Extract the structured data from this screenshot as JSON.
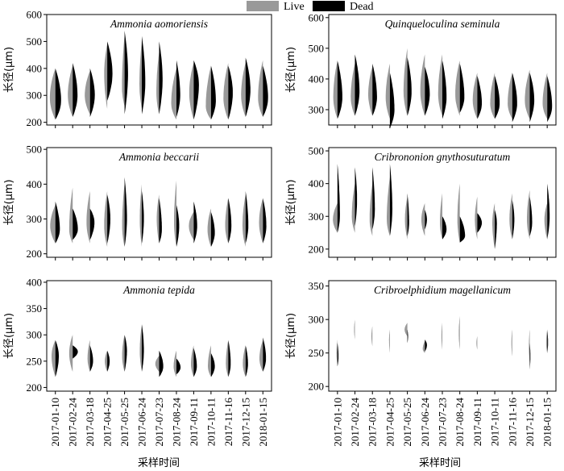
{
  "legend": {
    "live_label": "Live",
    "dead_label": "Dead",
    "live_color": "#999999",
    "dead_color": "#000000"
  },
  "xlabel": "采样时间",
  "ylabel": "长径(μm)",
  "dates": [
    "2017-01-10",
    "2017-02-24",
    "2017-03-18",
    "2017-04-25",
    "2017-05-25",
    "2017-06-24",
    "2017-07-23",
    "2017-08-24",
    "2017-09-11",
    "2017-10-11",
    "2017-11-16",
    "2017-12-15",
    "2018-01-15"
  ],
  "chart_data": [
    {
      "type": "split-violin",
      "title": "Ammonia aomoriensis",
      "ylim": [
        190,
        600
      ],
      "yticks": [
        200,
        300,
        400,
        500,
        600
      ],
      "live": [
        {
          "lo": 210,
          "hi": 400,
          "mode": 290,
          "w": 0.32
        },
        {
          "lo": 220,
          "hi": 410,
          "mode": 300,
          "w": 0.28
        },
        {
          "lo": 230,
          "hi": 390,
          "mode": 300,
          "w": 0.3
        },
        {
          "lo": 250,
          "hi": 490,
          "mode": 380,
          "w": 0.18
        },
        {
          "lo": 260,
          "hi": 520,
          "mode": 330,
          "w": 0.15
        },
        {
          "lo": 250,
          "hi": 500,
          "mode": 340,
          "w": 0.14
        },
        {
          "lo": 230,
          "hi": 460,
          "mode": 310,
          "w": 0.16
        },
        {
          "lo": 210,
          "hi": 400,
          "mode": 270,
          "w": 0.3
        },
        {
          "lo": 210,
          "hi": 420,
          "mode": 310,
          "w": 0.26
        },
        {
          "lo": 210,
          "hi": 410,
          "mode": 260,
          "w": 0.3
        },
        {
          "lo": 210,
          "hi": 420,
          "mode": 290,
          "w": 0.28
        },
        {
          "lo": 220,
          "hi": 420,
          "mode": 300,
          "w": 0.26
        },
        {
          "lo": 220,
          "hi": 430,
          "mode": 290,
          "w": 0.28
        }
      ],
      "dead": [
        {
          "lo": 210,
          "hi": 400,
          "mode": 280,
          "w": 0.33
        },
        {
          "lo": 220,
          "hi": 420,
          "mode": 300,
          "w": 0.28
        },
        {
          "lo": 220,
          "hi": 400,
          "mode": 300,
          "w": 0.28
        },
        {
          "lo": 280,
          "hi": 500,
          "mode": 380,
          "w": 0.3
        },
        {
          "lo": 230,
          "hi": 540,
          "mode": 380,
          "w": 0.2
        },
        {
          "lo": 230,
          "hi": 520,
          "mode": 350,
          "w": 0.2
        },
        {
          "lo": 230,
          "hi": 500,
          "mode": 360,
          "w": 0.2
        },
        {
          "lo": 220,
          "hi": 430,
          "mode": 300,
          "w": 0.22
        },
        {
          "lo": 210,
          "hi": 430,
          "mode": 340,
          "w": 0.3
        },
        {
          "lo": 210,
          "hi": 410,
          "mode": 280,
          "w": 0.28
        },
        {
          "lo": 210,
          "hi": 410,
          "mode": 310,
          "w": 0.26
        },
        {
          "lo": 220,
          "hi": 440,
          "mode": 320,
          "w": 0.28
        },
        {
          "lo": 220,
          "hi": 410,
          "mode": 290,
          "w": 0.3
        }
      ]
    },
    {
      "type": "split-violin",
      "title": "Quinqueloculina seminula",
      "ylim": [
        250,
        610
      ],
      "yticks": [
        300,
        400,
        500,
        600
      ],
      "live": [
        {
          "lo": 270,
          "hi": 460,
          "mode": 340,
          "w": 0.24
        },
        {
          "lo": 280,
          "hi": 450,
          "mode": 340,
          "w": 0.24
        },
        {
          "lo": 280,
          "hi": 440,
          "mode": 350,
          "w": 0.24
        },
        {
          "lo": 270,
          "hi": 450,
          "mode": 340,
          "w": 0.24
        },
        {
          "lo": 280,
          "hi": 500,
          "mode": 360,
          "w": 0.22
        },
        {
          "lo": 280,
          "hi": 480,
          "mode": 360,
          "w": 0.26
        },
        {
          "lo": 280,
          "hi": 480,
          "mode": 350,
          "w": 0.24
        },
        {
          "lo": 280,
          "hi": 460,
          "mode": 350,
          "w": 0.26
        },
        {
          "lo": 270,
          "hi": 420,
          "mode": 330,
          "w": 0.26
        },
        {
          "lo": 270,
          "hi": 420,
          "mode": 320,
          "w": 0.26
        },
        {
          "lo": 270,
          "hi": 420,
          "mode": 320,
          "w": 0.26
        },
        {
          "lo": 270,
          "hi": 430,
          "mode": 330,
          "w": 0.28
        },
        {
          "lo": 270,
          "hi": 420,
          "mode": 320,
          "w": 0.26
        }
      ],
      "dead": [
        {
          "lo": 270,
          "hi": 460,
          "mode": 340,
          "w": 0.28
        },
        {
          "lo": 280,
          "hi": 480,
          "mode": 360,
          "w": 0.26
        },
        {
          "lo": 280,
          "hi": 450,
          "mode": 340,
          "w": 0.26
        },
        {
          "lo": 240,
          "hi": 420,
          "mode": 300,
          "w": 0.26
        },
        {
          "lo": 280,
          "hi": 470,
          "mode": 360,
          "w": 0.24
        },
        {
          "lo": 280,
          "hi": 440,
          "mode": 350,
          "w": 0.28
        },
        {
          "lo": 270,
          "hi": 460,
          "mode": 340,
          "w": 0.24
        },
        {
          "lo": 290,
          "hi": 450,
          "mode": 340,
          "w": 0.26
        },
        {
          "lo": 270,
          "hi": 410,
          "mode": 320,
          "w": 0.26
        },
        {
          "lo": 270,
          "hi": 410,
          "mode": 320,
          "w": 0.28
        },
        {
          "lo": 260,
          "hi": 420,
          "mode": 320,
          "w": 0.28
        },
        {
          "lo": 260,
          "hi": 420,
          "mode": 330,
          "w": 0.26
        },
        {
          "lo": 260,
          "hi": 410,
          "mode": 310,
          "w": 0.28
        }
      ]
    },
    {
      "type": "split-violin",
      "title": "Ammonia beccarii",
      "ylim": [
        190,
        505
      ],
      "yticks": [
        200,
        300,
        400,
        500
      ],
      "live": [
        {
          "lo": 230,
          "hi": 340,
          "mode": 280,
          "w": 0.3
        },
        {
          "lo": 230,
          "hi": 390,
          "mode": 270,
          "w": 0.2
        },
        {
          "lo": 230,
          "hi": 380,
          "mode": 290,
          "w": 0.2
        },
        {
          "lo": 220,
          "hi": 380,
          "mode": 280,
          "w": 0.18
        },
        {
          "lo": 220,
          "hi": 400,
          "mode": 280,
          "w": 0.14
        },
        {
          "lo": 220,
          "hi": 400,
          "mode": 300,
          "w": 0.12
        },
        {
          "lo": 230,
          "hi": 370,
          "mode": 300,
          "w": 0.14
        },
        {
          "lo": 220,
          "hi": 410,
          "mode": 290,
          "w": 0.14
        },
        {
          "lo": 240,
          "hi": 320,
          "mode": 280,
          "w": 0.28
        },
        {
          "lo": 220,
          "hi": 330,
          "mode": 270,
          "w": 0.2
        },
        {
          "lo": 230,
          "hi": 360,
          "mode": 280,
          "w": 0.18
        },
        {
          "lo": 220,
          "hi": 370,
          "mode": 280,
          "w": 0.18
        },
        {
          "lo": 230,
          "hi": 360,
          "mode": 290,
          "w": 0.22
        }
      ],
      "dead": [
        {
          "lo": 230,
          "hi": 350,
          "mode": 270,
          "w": 0.26
        },
        {
          "lo": 240,
          "hi": 330,
          "mode": 270,
          "w": 0.3
        },
        {
          "lo": 240,
          "hi": 330,
          "mode": 290,
          "w": 0.26
        },
        {
          "lo": 230,
          "hi": 370,
          "mode": 300,
          "w": 0.18
        },
        {
          "lo": 220,
          "hi": 420,
          "mode": 300,
          "w": 0.14
        },
        {
          "lo": 230,
          "hi": 380,
          "mode": 300,
          "w": 0.12
        },
        {
          "lo": 230,
          "hi": 360,
          "mode": 270,
          "w": 0.16
        },
        {
          "lo": 220,
          "hi": 340,
          "mode": 280,
          "w": 0.16
        },
        {
          "lo": 230,
          "hi": 350,
          "mode": 280,
          "w": 0.2
        },
        {
          "lo": 220,
          "hi": 320,
          "mode": 260,
          "w": 0.22
        },
        {
          "lo": 230,
          "hi": 360,
          "mode": 280,
          "w": 0.18
        },
        {
          "lo": 230,
          "hi": 380,
          "mode": 280,
          "w": 0.16
        },
        {
          "lo": 230,
          "hi": 360,
          "mode": 280,
          "w": 0.2
        }
      ]
    },
    {
      "type": "split-violin",
      "title": "Cribrononion gnythosuturatum",
      "ylim": [
        175,
        510
      ],
      "yticks": [
        200,
        300,
        400,
        500
      ],
      "live": [
        {
          "lo": 250,
          "hi": 340,
          "mode": 290,
          "w": 0.26
        },
        {
          "lo": 250,
          "hi": 400,
          "mode": 300,
          "w": 0.18
        },
        {
          "lo": 240,
          "hi": 400,
          "mode": 290,
          "w": 0.16
        },
        {
          "lo": 240,
          "hi": 420,
          "mode": 290,
          "w": 0.18
        },
        {
          "lo": 230,
          "hi": 360,
          "mode": 290,
          "w": 0.14
        },
        {
          "lo": 240,
          "hi": 340,
          "mode": 290,
          "w": 0.2
        },
        {
          "lo": 230,
          "hi": 370,
          "mode": 280,
          "w": 0.14
        },
        {
          "lo": 220,
          "hi": 400,
          "mode": 290,
          "w": 0.14
        },
        {
          "lo": 230,
          "hi": 360,
          "mode": 290,
          "w": 0.14
        },
        {
          "lo": 200,
          "hi": 340,
          "mode": 280,
          "w": 0.14
        },
        {
          "lo": 230,
          "hi": 370,
          "mode": 290,
          "w": 0.16
        },
        {
          "lo": 230,
          "hi": 380,
          "mode": 290,
          "w": 0.16
        },
        {
          "lo": 230,
          "hi": 340,
          "mode": 290,
          "w": 0.16
        }
      ],
      "dead": [
        {
          "lo": 250,
          "hi": 460,
          "mode": 300,
          "w": 0.14
        },
        {
          "lo": 270,
          "hi": 450,
          "mode": 350,
          "w": 0.12
        },
        {
          "lo": 260,
          "hi": 450,
          "mode": 320,
          "w": 0.14
        },
        {
          "lo": 240,
          "hi": 460,
          "mode": 320,
          "w": 0.14
        },
        {
          "lo": 240,
          "hi": 370,
          "mode": 280,
          "w": 0.1
        },
        {
          "lo": 260,
          "hi": 320,
          "mode": 290,
          "w": 0.12
        },
        {
          "lo": 230,
          "hi": 300,
          "mode": 260,
          "w": 0.24
        },
        {
          "lo": 220,
          "hi": 300,
          "mode": 240,
          "w": 0.3
        },
        {
          "lo": 250,
          "hi": 310,
          "mode": 280,
          "w": 0.26
        },
        {
          "lo": 200,
          "hi": 320,
          "mode": 280,
          "w": 0.12
        },
        {
          "lo": 230,
          "hi": 350,
          "mode": 290,
          "w": 0.12
        },
        {
          "lo": 240,
          "hi": 360,
          "mode": 280,
          "w": 0.14
        },
        {
          "lo": 230,
          "hi": 400,
          "mode": 300,
          "w": 0.14
        }
      ]
    },
    {
      "type": "split-violin",
      "title": "Ammonia tepida",
      "ylim": [
        193,
        403
      ],
      "yticks": [
        200,
        250,
        300,
        350,
        400
      ],
      "live": [
        {
          "lo": 220,
          "hi": 290,
          "mode": 260,
          "w": 0.22
        },
        {
          "lo": 230,
          "hi": 300,
          "mode": 265,
          "w": 0.2
        },
        {
          "lo": 230,
          "hi": 290,
          "mode": 255,
          "w": 0.14
        },
        {
          "lo": 230,
          "hi": 270,
          "mode": 250,
          "w": 0.14
        },
        {
          "lo": 230,
          "hi": 300,
          "mode": 260,
          "w": 0.14
        },
        {
          "lo": 230,
          "hi": 320,
          "mode": 270,
          "w": 0.12
        },
        {
          "lo": 230,
          "hi": 260,
          "mode": 245,
          "w": 0.22
        },
        {
          "lo": 220,
          "hi": 270,
          "mode": 240,
          "w": 0.16
        },
        {
          "lo": 220,
          "hi": 280,
          "mode": 245,
          "w": 0.16
        },
        {
          "lo": 220,
          "hi": 280,
          "mode": 240,
          "w": 0.18
        },
        {
          "lo": 220,
          "hi": 290,
          "mode": 245,
          "w": 0.14
        },
        {
          "lo": 220,
          "hi": 280,
          "mode": 245,
          "w": 0.16
        },
        {
          "lo": 230,
          "hi": 290,
          "mode": 255,
          "w": 0.2
        }
      ],
      "dead": [
        {
          "lo": 220,
          "hi": 290,
          "mode": 260,
          "w": 0.2
        },
        {
          "lo": 255,
          "hi": 280,
          "mode": 268,
          "w": 0.3
        },
        {
          "lo": 230,
          "hi": 280,
          "mode": 250,
          "w": 0.18
        },
        {
          "lo": 230,
          "hi": 270,
          "mode": 250,
          "w": 0.14
        },
        {
          "lo": 230,
          "hi": 300,
          "mode": 270,
          "w": 0.14
        },
        {
          "lo": 230,
          "hi": 320,
          "mode": 270,
          "w": 0.12
        },
        {
          "lo": 220,
          "hi": 270,
          "mode": 240,
          "w": 0.24
        },
        {
          "lo": 225,
          "hi": 255,
          "mode": 238,
          "w": 0.24
        },
        {
          "lo": 220,
          "hi": 275,
          "mode": 240,
          "w": 0.18
        },
        {
          "lo": 220,
          "hi": 265,
          "mode": 240,
          "w": 0.22
        },
        {
          "lo": 220,
          "hi": 290,
          "mode": 245,
          "w": 0.14
        },
        {
          "lo": 220,
          "hi": 280,
          "mode": 245,
          "w": 0.14
        },
        {
          "lo": 230,
          "hi": 295,
          "mode": 255,
          "w": 0.18
        }
      ]
    },
    {
      "type": "split-violin",
      "title": "Cribroelphidium magellanicum",
      "ylim": [
        193,
        358
      ],
      "yticks": [
        200,
        250,
        300,
        350
      ],
      "live": [
        {
          "lo": 230,
          "hi": 270,
          "mode": 250,
          "w": 0.06
        },
        {
          "lo": 270,
          "hi": 300,
          "mode": 285,
          "w": 0.05
        },
        {
          "lo": 260,
          "hi": 290,
          "mode": 275,
          "w": 0.06
        },
        {
          "lo": 250,
          "hi": 285,
          "mode": 270,
          "w": 0.05
        },
        {
          "lo": 275,
          "hi": 295,
          "mode": 285,
          "w": 0.16
        },
        {
          "lo": 250,
          "hi": 268,
          "mode": 256,
          "w": 0.12
        },
        {
          "lo": 255,
          "hi": 295,
          "mode": 275,
          "w": 0.05
        },
        {
          "lo": 255,
          "hi": 305,
          "mode": 280,
          "w": 0.06
        },
        {
          "lo": 255,
          "hi": 275,
          "mode": 265,
          "w": 0.05
        },
        {
          "lo": null,
          "hi": null,
          "mode": null,
          "w": 0
        },
        {
          "lo": 245,
          "hi": 285,
          "mode": 265,
          "w": 0.05
        },
        {
          "lo": 235,
          "hi": 285,
          "mode": 260,
          "w": 0.05
        },
        {
          "lo": 250,
          "hi": 285,
          "mode": 265,
          "w": 0.06
        }
      ],
      "dead": [
        {
          "lo": 230,
          "hi": 265,
          "mode": 245,
          "w": 0.06
        },
        {
          "lo": null,
          "hi": null,
          "mode": null,
          "w": 0
        },
        {
          "lo": null,
          "hi": null,
          "mode": null,
          "w": 0
        },
        {
          "lo": null,
          "hi": null,
          "mode": null,
          "w": 0
        },
        {
          "lo": 265,
          "hi": 285,
          "mode": 275,
          "w": 0.04
        },
        {
          "lo": 252,
          "hi": 270,
          "mode": 262,
          "w": 0.12
        },
        {
          "lo": null,
          "hi": null,
          "mode": null,
          "w": 0
        },
        {
          "lo": null,
          "hi": null,
          "mode": null,
          "w": 0
        },
        {
          "lo": null,
          "hi": null,
          "mode": null,
          "w": 0
        },
        {
          "lo": null,
          "hi": null,
          "mode": null,
          "w": 0
        },
        {
          "lo": null,
          "hi": null,
          "mode": null,
          "w": 0
        },
        {
          "lo": 225,
          "hi": 265,
          "mode": 245,
          "w": 0.04
        },
        {
          "lo": 250,
          "hi": 285,
          "mode": 265,
          "w": 0.05
        }
      ]
    }
  ]
}
